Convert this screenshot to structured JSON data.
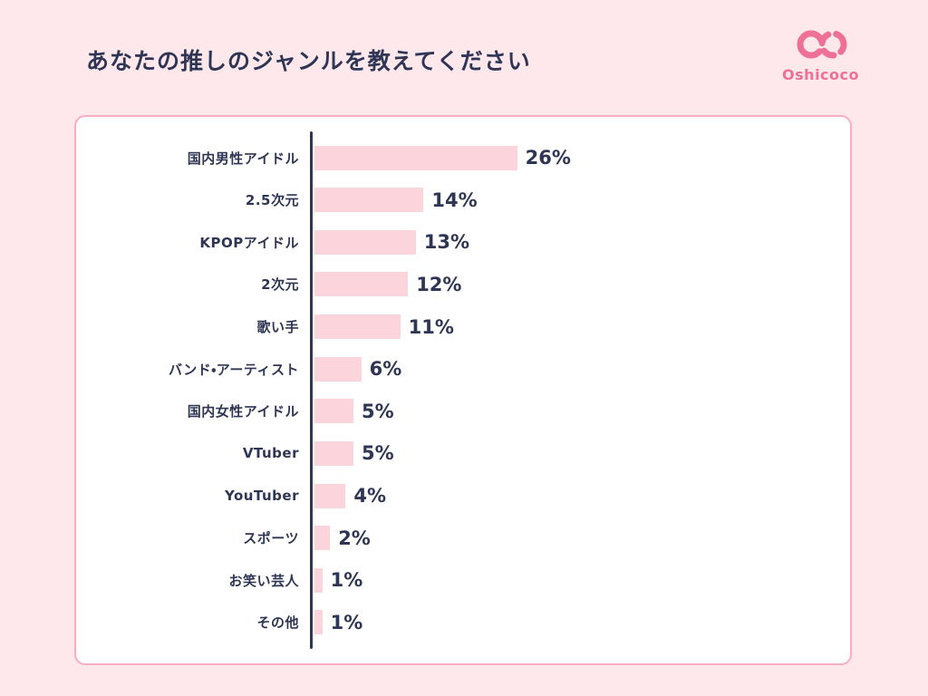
{
  "header": {
    "title": "あなたの推しのジャンルを教えてください",
    "brand_name": "Oshicoco"
  },
  "colors": {
    "page_background": "#FFE8EC",
    "card_background": "#FFFFFF",
    "card_border": "#F8AEC0",
    "bar_fill": "#FBD4DC",
    "axis_line": "#2F3655",
    "text_primary": "#2F3655",
    "brand_pink": "#EE7099"
  },
  "chart_data": {
    "type": "bar",
    "orientation": "horizontal",
    "title": "あなたの推しのジャンルを教えてください",
    "categories": [
      "国内男性アイドル",
      "2.5次元",
      "KPOPアイドル",
      "2次元",
      "歌い手",
      "バンド・アーティスト",
      "国内女性アイドル",
      "VTuber",
      "YouTuber",
      "スポーツ",
      "お笑い芸人",
      "その他"
    ],
    "values": [
      26,
      14,
      13,
      12,
      11,
      6,
      5,
      5,
      4,
      2,
      1,
      1
    ],
    "value_suffix": "%",
    "xlim": [
      0,
      30
    ],
    "grid": false,
    "legend": false
  }
}
